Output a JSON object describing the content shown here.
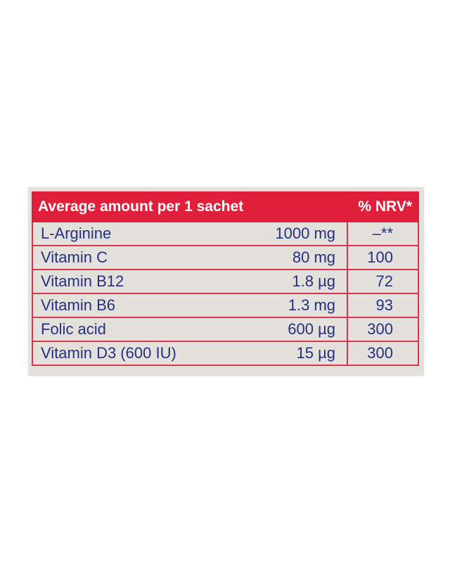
{
  "table": {
    "header": {
      "amount_label": "Average amount per 1 sachet",
      "nrv_label": "% NRV*"
    },
    "rows": [
      {
        "name": "L-Arginine",
        "amount": "1000 mg",
        "nrv": "–**"
      },
      {
        "name": "Vitamin C",
        "amount": "80 mg",
        "nrv": "100"
      },
      {
        "name": "Vitamin B12",
        "amount": "1.8 µg",
        "nrv": "72"
      },
      {
        "name": "Vitamin B6",
        "amount": "1.3 mg",
        "nrv": "93"
      },
      {
        "name": "Folic acid",
        "amount": "600 µg",
        "nrv": "300"
      },
      {
        "name": "Vitamin D3 (600 IU)",
        "amount": "15 µg",
        "nrv": "300"
      }
    ]
  },
  "colors": {
    "header_background": "#e0203a",
    "text": "#25307f",
    "rule": "#d8344a",
    "card_background": "#e4e1dc"
  }
}
